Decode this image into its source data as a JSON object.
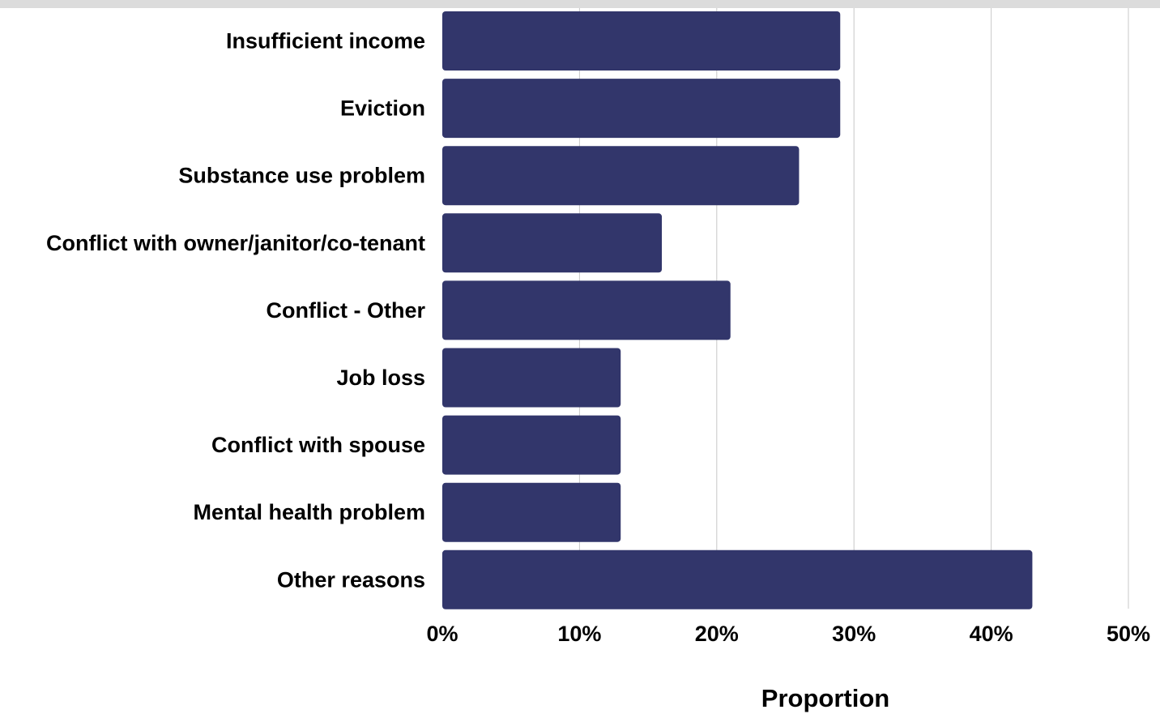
{
  "chart_data": {
    "type": "bar",
    "orientation": "horizontal",
    "categories": [
      "Insufficient income",
      "Eviction",
      "Substance use problem",
      "Conflict with owner/janitor/co-tenant",
      "Conflict - Other",
      "Job loss",
      "Conflict with spouse",
      "Mental health problem",
      "Other reasons"
    ],
    "values": [
      29,
      29,
      26,
      16,
      21,
      13,
      13,
      13,
      43
    ],
    "xlabel": "Proportion",
    "ylabel": "",
    "xlim": [
      0,
      50
    ],
    "xticks": [
      "0%",
      "10%",
      "20%",
      "30%",
      "40%",
      "50%"
    ],
    "grid": true,
    "bar_color": "#32366b",
    "grid_color": "#c8c8c8"
  }
}
